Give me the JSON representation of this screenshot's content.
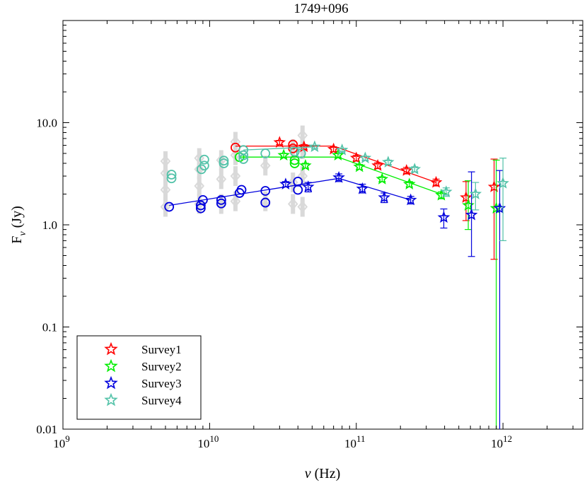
{
  "chart_data": {
    "type": "scatter",
    "title": "1749+096",
    "xlabel_symbol": "ν",
    "xlabel_unit": " (Hz)",
    "ylabel_main": "F",
    "ylabel_sub": "ν",
    "ylabel_unit": " (Jy)",
    "x_scale": "log",
    "y_scale": "log",
    "xlim": [
      1000000000.0,
      3500000000000.0
    ],
    "ylim": [
      0.01,
      100
    ],
    "x_ticks": [
      {
        "value": 1000000000.0,
        "base": "10",
        "exp": "9"
      },
      {
        "value": 10000000000.0,
        "base": "10",
        "exp": "10"
      },
      {
        "value": 100000000000.0,
        "base": "10",
        "exp": "11"
      },
      {
        "value": 1000000000000.0,
        "base": "10",
        "exp": "12"
      }
    ],
    "y_ticks": [
      {
        "value": 0.01,
        "label": "0.01"
      },
      {
        "value": 0.1,
        "label": "0.1"
      },
      {
        "value": 1,
        "label": "1.0"
      },
      {
        "value": 10,
        "label": "10.0"
      }
    ],
    "legend_position": "bottom-left",
    "background_points": {
      "color": "#d9d9d9",
      "marker": "diamond",
      "x": [
        5000000000.0,
        5000000000.0,
        5000000000.0,
        5000000000.0,
        8500000000.0,
        8500000000.0,
        8500000000.0,
        8500000000.0,
        12000000000.0,
        12000000000.0,
        12000000000.0,
        15000000000.0,
        15000000000.0,
        15000000000.0,
        15000000000.0,
        24000000000.0,
        24000000000.0,
        37000000000.0,
        37000000000.0,
        37000000000.0,
        43000000000.0,
        43000000000.0,
        43000000000.0,
        43000000000.0
      ],
      "y": [
        1.5,
        2.2,
        3.2,
        4.2,
        1.6,
        2.4,
        3.5,
        4.5,
        1.6,
        2.8,
        4.3,
        1.7,
        3.0,
        4.8,
        6.5,
        1.7,
        3.8,
        1.6,
        2.6,
        5.5,
        1.5,
        3.0,
        5.5,
        7.5
      ]
    },
    "series": [
      {
        "name": "Survey1",
        "color": "#ff0000",
        "circles": {
          "x": [
            15000000000.0,
            37000000000.0,
            37000000000.0
          ],
          "y": [
            5.7,
            6.1,
            5.6
          ]
        },
        "stars": {
          "x": [
            30000000000.0,
            44000000000.0,
            70000000000.0,
            100000000000.0,
            140000000000.0,
            220000000000.0,
            350000000000.0,
            560000000000.0,
            870000000000.0
          ],
          "y": [
            6.4,
            5.8,
            5.5,
            4.5,
            3.8,
            3.4,
            2.6,
            1.85,
            2.35
          ],
          "err_low": [
            6.1,
            5.5,
            5.2,
            4.2,
            3.55,
            3.15,
            2.4,
            1.1,
            0.46
          ],
          "err_high": [
            6.7,
            6.1,
            5.8,
            4.8,
            4.05,
            3.65,
            2.8,
            2.65,
            4.4
          ]
        },
        "fit": {
          "x": [
            15000000000.0,
            70000000000.0,
            350000000000.0
          ],
          "y": [
            5.9,
            5.9,
            2.6
          ]
        }
      },
      {
        "name": "Survey2",
        "color": "#00ee00",
        "circles": {
          "x": [
            16000000000.0,
            38000000000.0,
            38000000000.0
          ],
          "y": [
            4.6,
            4.3,
            4.0
          ]
        },
        "stars": {
          "x": [
            32000000000.0,
            45000000000.0,
            75000000000.0,
            105000000000.0,
            150000000000.0,
            230000000000.0,
            380000000000.0,
            580000000000.0,
            900000000000.0
          ],
          "y": [
            4.8,
            3.8,
            4.8,
            3.7,
            2.8,
            2.5,
            1.95,
            1.55,
            1.45
          ],
          "err_low": [
            4.6,
            3.6,
            4.6,
            3.5,
            2.65,
            2.35,
            1.8,
            0.9,
            0.005
          ],
          "err_high": [
            5.0,
            4.0,
            5.0,
            3.9,
            2.95,
            2.65,
            2.1,
            2.7,
            4.3
          ]
        },
        "fit": {
          "x": [
            16000000000.0,
            75000000000.0,
            380000000000.0
          ],
          "y": [
            4.6,
            4.6,
            2.0
          ]
        }
      },
      {
        "name": "Survey3",
        "color": "#0000dd",
        "circles": {
          "x": [
            5300000000.0,
            8700000000.0,
            8700000000.0,
            9000000000.0,
            12000000000.0,
            12000000000.0,
            16000000000.0,
            16500000000.0,
            24000000000.0,
            24000000000.0,
            40000000000.0,
            40000000000.0
          ],
          "y": [
            1.5,
            1.45,
            1.55,
            1.75,
            1.62,
            1.75,
            2.05,
            2.2,
            1.65,
            2.15,
            2.2,
            2.65
          ]
        },
        "stars": {
          "x": [
            33000000000.0,
            47000000000.0,
            76000000000.0,
            110000000000.0,
            155000000000.0,
            235000000000.0,
            395000000000.0,
            610000000000.0,
            950000000000.0
          ],
          "y": [
            2.5,
            2.35,
            2.9,
            2.25,
            1.85,
            1.75,
            1.18,
            1.25,
            1.45
          ],
          "err_low": [
            2.35,
            2.1,
            2.65,
            2.05,
            1.65,
            1.6,
            0.93,
            0.49,
            0.005
          ],
          "err_high": [
            2.65,
            2.6,
            3.15,
            2.5,
            2.05,
            1.9,
            1.43,
            3.3,
            3.4
          ]
        },
        "fit": {
          "x": [
            5300000000.0,
            76000000000.0,
            235000000000.0
          ],
          "y": [
            1.55,
            2.85,
            1.75
          ]
        }
      },
      {
        "name": "Survey4",
        "color": "#52c2a8",
        "circles": {
          "x": [
            5500000000.0,
            5500000000.0,
            8800000000.0,
            9200000000.0,
            9200000000.0,
            12500000000.0,
            12500000000.0,
            17000000000.0,
            17000000000.0,
            17000000000.0,
            24000000000.0,
            38000000000.0,
            42000000000.0
          ],
          "y": [
            2.85,
            3.1,
            3.5,
            3.8,
            4.35,
            4.0,
            4.25,
            4.4,
            4.8,
            5.4,
            5.0,
            5.2,
            5.0
          ]
        },
        "stars": {
          "x": [
            52000000000.0,
            80000000000.0,
            115000000000.0,
            165000000000.0,
            250000000000.0,
            410000000000.0,
            650000000000.0,
            1000000000000.0
          ],
          "y": [
            5.8,
            5.4,
            4.5,
            4.1,
            3.5,
            2.1,
            2.0,
            2.55
          ],
          "err_low": [
            5.6,
            5.2,
            4.3,
            3.9,
            3.3,
            1.9,
            1.4,
            0.7
          ],
          "err_high": [
            6.0,
            5.6,
            4.7,
            4.3,
            3.7,
            2.3,
            2.6,
            4.5
          ]
        },
        "fit": {
          "x": [
            17000000000.0,
            52000000000.0
          ],
          "y": [
            5.4,
            5.8
          ]
        }
      }
    ]
  }
}
